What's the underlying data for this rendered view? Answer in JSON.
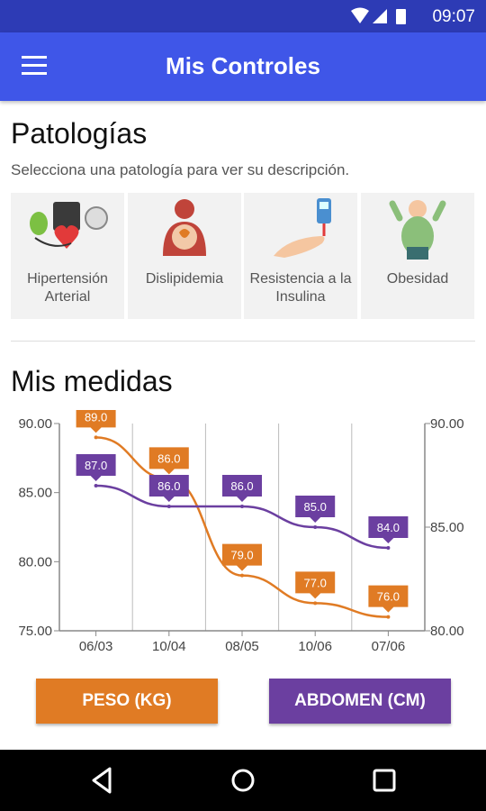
{
  "status_bar": {
    "time": "09:07"
  },
  "app_bar": {
    "title": "Mis Controles"
  },
  "pathologies": {
    "title": "Patologías",
    "subtitle": "Selecciona una patología para ver su descripción.",
    "items": [
      {
        "label": "Hipertensión Arterial",
        "icon": "blood-pressure-monitor-icon"
      },
      {
        "label": "Dislipidemia",
        "icon": "dyslipidemia-person-icon"
      },
      {
        "label": "Resistencia a la Insulina",
        "icon": "glucometer-hand-icon"
      },
      {
        "label": "Obesidad",
        "icon": "obese-person-icon"
      }
    ]
  },
  "measures": {
    "title": "Mis medidas"
  },
  "chart_data": {
    "type": "line",
    "categories": [
      "06/03",
      "10/04",
      "08/05",
      "10/06",
      "07/06"
    ],
    "series": [
      {
        "name": "PESO (KG)",
        "color": "#e07b24",
        "values": [
          89.0,
          86.0,
          79.0,
          77.0,
          76.0
        ],
        "axis": "left"
      },
      {
        "name": "ABDOMEN (CM)",
        "color": "#6b3fa0",
        "values": [
          87.0,
          86.0,
          86.0,
          85.0,
          84.0
        ],
        "axis": "right"
      }
    ],
    "left_axis": {
      "range": [
        75,
        90
      ],
      "ticks": [
        "90.00",
        "85.00",
        "80.00",
        "75.00"
      ]
    },
    "right_axis": {
      "range": [
        80,
        90
      ],
      "ticks": [
        "90.00",
        "85.00",
        "80.00"
      ]
    },
    "grid": true
  },
  "buttons": {
    "peso": {
      "label": "PESO (KG)",
      "color": "#e07b24"
    },
    "abdomen": {
      "label": "ABDOMEN (CM)",
      "color": "#6b3fa0"
    }
  }
}
